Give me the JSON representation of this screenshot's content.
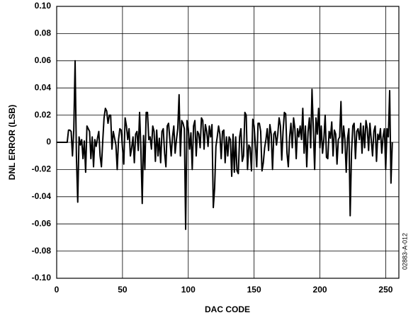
{
  "chart_data": {
    "type": "line",
    "xlabel": "DAC CODE",
    "ylabel": "DNL ERROR (LSB)",
    "annotation": "02883-A-012",
    "color": "#000000",
    "grid": true,
    "xlim": [
      0,
      260
    ],
    "xticks": [
      0,
      50,
      100,
      150,
      200,
      250
    ],
    "ylim": [
      -0.1,
      0.1
    ],
    "yticks": [
      {
        "value": 0.1,
        "label": "0.10"
      },
      0.08,
      0.06,
      0.04,
      0.02,
      0,
      -0.02,
      -0.04,
      -0.06,
      -0.08,
      {
        "value": -0.1,
        "label": "-0.10"
      }
    ],
    "x": [
      0,
      1,
      2,
      3,
      4,
      5,
      6,
      7,
      8,
      9,
      10,
      11,
      12,
      13,
      14,
      15,
      16,
      17,
      18,
      19,
      20,
      21,
      22,
      23,
      24,
      25,
      26,
      27,
      28,
      29,
      30,
      31,
      32,
      33,
      34,
      35,
      36,
      37,
      38,
      39,
      40,
      41,
      42,
      43,
      44,
      45,
      46,
      47,
      48,
      49,
      50,
      51,
      52,
      53,
      54,
      55,
      56,
      57,
      58,
      59,
      60,
      61,
      62,
      63,
      64,
      65,
      66,
      67,
      68,
      69,
      70,
      71,
      72,
      73,
      74,
      75,
      76,
      77,
      78,
      79,
      80,
      81,
      82,
      83,
      84,
      85,
      86,
      87,
      88,
      89,
      90,
      91,
      92,
      93,
      94,
      95,
      96,
      97,
      98,
      99,
      100,
      101,
      102,
      103,
      104,
      105,
      106,
      107,
      108,
      109,
      110,
      111,
      112,
      113,
      114,
      115,
      116,
      117,
      118,
      119,
      120,
      121,
      122,
      123,
      124,
      125,
      126,
      127,
      128,
      129,
      130,
      131,
      132,
      133,
      134,
      135,
      136,
      137,
      138,
      139,
      140,
      141,
      142,
      143,
      144,
      145,
      146,
      147,
      148,
      149,
      150,
      151,
      152,
      153,
      154,
      155,
      156,
      157,
      158,
      159,
      160,
      161,
      162,
      163,
      164,
      165,
      166,
      167,
      168,
      169,
      170,
      171,
      172,
      173,
      174,
      175,
      176,
      177,
      178,
      179,
      180,
      181,
      182,
      183,
      184,
      185,
      186,
      187,
      188,
      189,
      190,
      191,
      192,
      193,
      194,
      195,
      196,
      197,
      198,
      199,
      200,
      201,
      202,
      203,
      204,
      205,
      206,
      207,
      208,
      209,
      210,
      211,
      212,
      213,
      214,
      215,
      216,
      217,
      218,
      219,
      220,
      221,
      222,
      223,
      224,
      225,
      226,
      227,
      228,
      229,
      230,
      231,
      232,
      233,
      234,
      235,
      236,
      237,
      238,
      239,
      240,
      241,
      242,
      243,
      244,
      245,
      246,
      247,
      248,
      249,
      250,
      251,
      252,
      253,
      254,
      255
    ],
    "values": [
      0,
      0,
      0,
      0,
      0,
      0,
      0,
      0,
      0,
      0.009,
      0.009,
      0.008,
      -0.01,
      0.009,
      0.06,
      -0.01,
      -0.044,
      0.004,
      -0.002,
      0.002,
      -0.012,
      0.001,
      -0.022,
      0.012,
      0.01,
      0.008,
      -0.012,
      0.004,
      -0.018,
      0.002,
      -0.003,
      0.003,
      0.008,
      -0.01,
      -0.018,
      0.001,
      0.018,
      0.025,
      0.023,
      0.014,
      0.02,
      0.02,
      -0.005,
      0.008,
      0.003,
      -0.002,
      -0.02,
      0.002,
      0.01,
      0.009,
      -0.004,
      -0.016,
      0.018,
      0.012,
      0.002,
      0.01,
      -0.01,
      -0.004,
      0.004,
      -0.015,
      0.006,
      0.008,
      -0.006,
      0.022,
      -0.005,
      -0.045,
      0.005,
      -0.02,
      0.022,
      0.022,
      0.002,
      0.004,
      -0.005,
      0.012,
      0.008,
      -0.014,
      0.009,
      -0.01,
      0.003,
      -0.015,
      0.008,
      0.01,
      -0.008,
      -0.018,
      0.012,
      0.014,
      0.002,
      -0.01,
      0.004,
      0.012,
      -0.008,
      0.002,
      0.01,
      0.035,
      -0.01,
      0.016,
      0.014,
      0.01,
      -0.064,
      0.016,
      0.01,
      -0.005,
      0.007,
      -0.02,
      0.012,
      0.016,
      -0.01,
      0.008,
      0.006,
      -0.004,
      0.018,
      0.016,
      -0.005,
      0.013,
      0.008,
      -0.003,
      0.012,
      0.004,
      0.013,
      -0.048,
      -0.034,
      -0.003,
      0.004,
      0.012,
      0.006,
      -0.012,
      0.008,
      0.009,
      -0.015,
      0.004,
      -0.01,
      0.004,
      0.002,
      -0.025,
      0.006,
      -0.022,
      0.004,
      -0.021,
      -0.023,
      0.004,
      0.01,
      -0.014,
      -0.01,
      0.022,
      0.02,
      -0.02,
      -0.002,
      -0.004,
      -0.021,
      0.017,
      0.012,
      -0.002,
      -0.018,
      0.014,
      0.014,
      0.008,
      -0.021,
      -0.015,
      -0.004,
      0.002,
      0.01,
      -0.006,
      0.013,
      0.006,
      -0.02,
      0.006,
      0.008,
      -0.002,
      0.006,
      0.018,
      0.012,
      -0.013,
      0.008,
      0.022,
      0.021,
      -0.008,
      -0.018,
      0.004,
      0.014,
      -0.004,
      0.018,
      0.01,
      -0.012,
      0.01,
      0.004,
      0.012,
      0.002,
      0.025,
      -0.008,
      0.012,
      -0.018,
      0.008,
      0.018,
      -0.004,
      0.039,
      0.01,
      -0.02,
      0.018,
      0.006,
      0.025,
      -0.004,
      0.012,
      -0.008,
      0.002,
      0.02,
      -0.011,
      -0.012,
      0.008,
      0.003,
      0.015,
      -0.01,
      0.009,
      0.006,
      -0.016,
      0.002,
      0.004,
      0.03,
      -0.008,
      0.012,
      0.002,
      -0.022,
      0.003,
      0.01,
      -0.054,
      -0.008,
      0.012,
      0.014,
      -0.012,
      0.008,
      0.01,
      0.002,
      0.014,
      -0.008,
      0.012,
      -0.004,
      0.016,
      0.01,
      -0.006,
      0.014,
      0.002,
      -0.01,
      0.008,
      0.012,
      -0.014,
      0.006,
      0.002,
      0.01,
      -0.008,
      0.004,
      0.01,
      -0.02,
      0.01,
      0.004,
      0.038,
      -0.03,
      0
    ]
  }
}
